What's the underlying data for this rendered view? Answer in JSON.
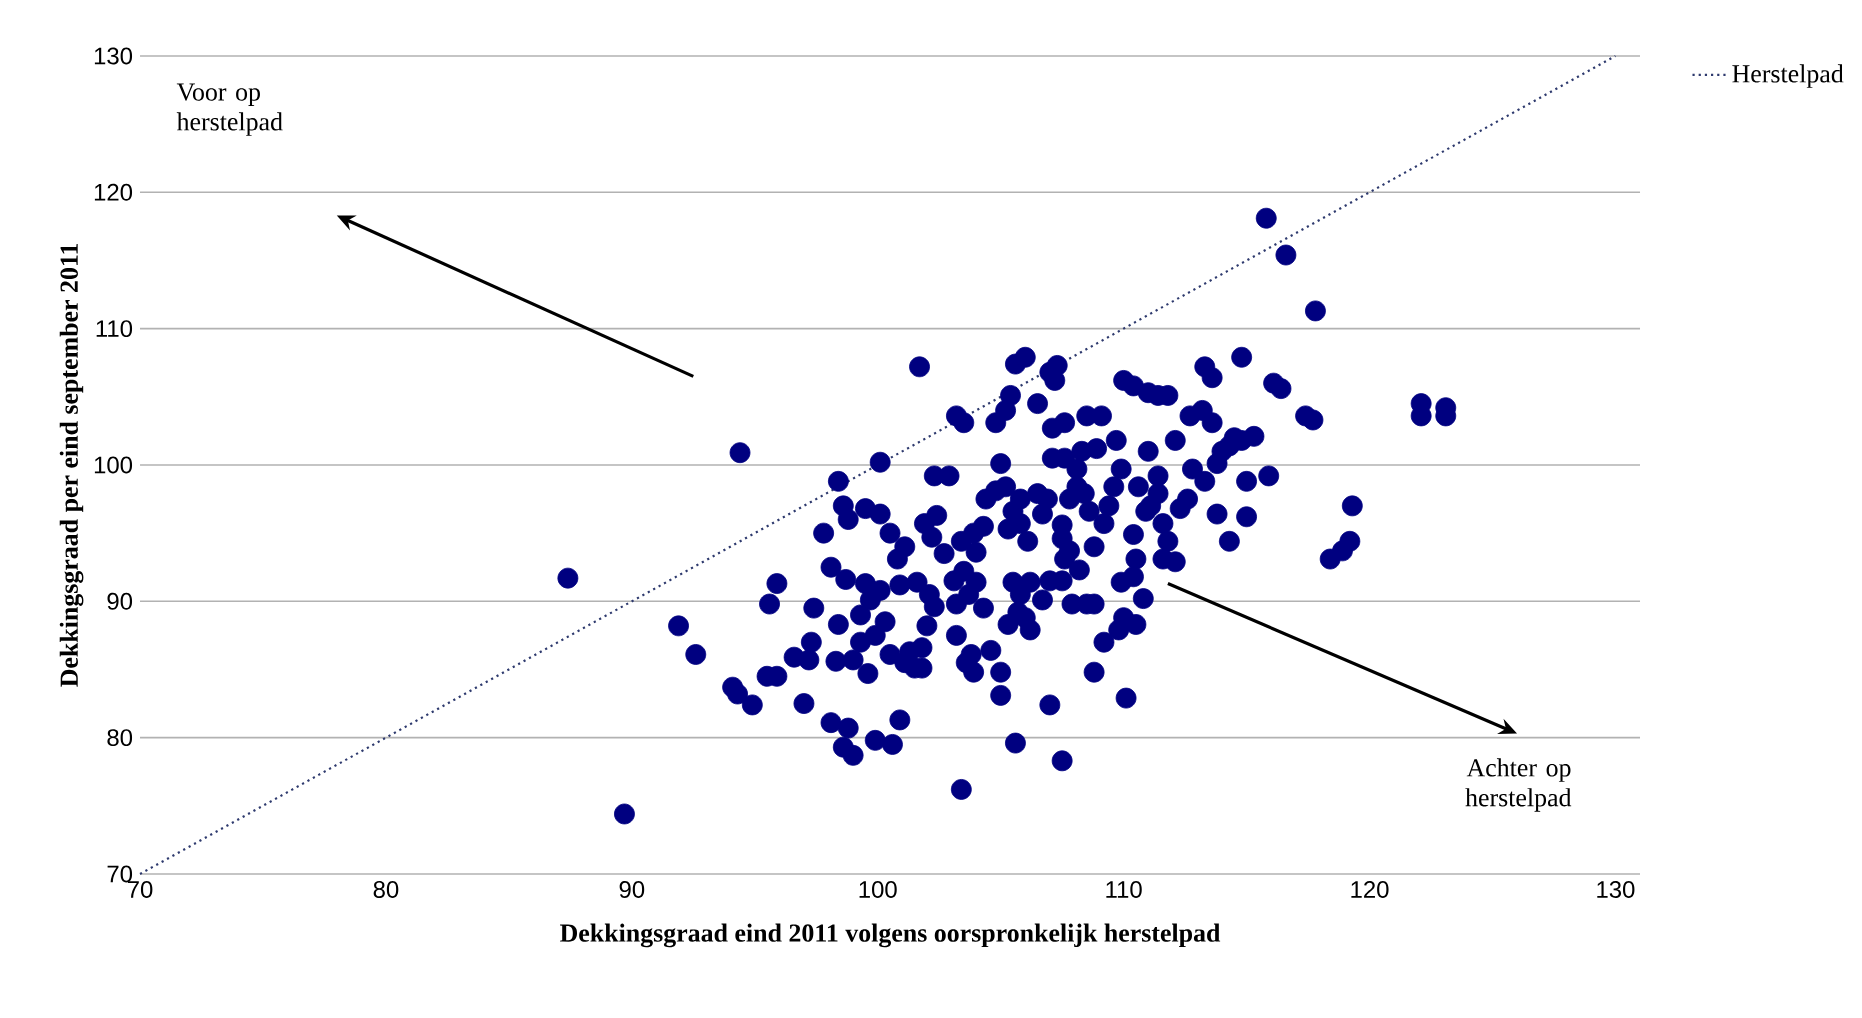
{
  "chart_data": {
    "type": "scatter",
    "xlabel": "Dekkingsgraad eind 2011 volgens oorspronkelijk herstelpad",
    "ylabel": "Dekkingsgraad per eind september 2011",
    "xlim": [
      70,
      131
    ],
    "ylim": [
      70,
      130
    ],
    "xticks": [
      70,
      80,
      90,
      100,
      110,
      120,
      130
    ],
    "yticks": [
      70,
      80,
      90,
      100,
      110,
      120,
      130
    ],
    "grid": "y",
    "legend": "top right",
    "annotations": [
      "Voor op herstelpad",
      "Achter op herstelpad"
    ],
    "series": [
      {
        "color": "#000080",
        "marker": "circle",
        "x": [
          87.4,
          89.7,
          94.4,
          91.9,
          92.6,
          94.1,
          94.3,
          94.9,
          95.5,
          95.9,
          95.9,
          95.6,
          96.6,
          97.0,
          97.3,
          97.4,
          97.2,
          97.8,
          98.1,
          98.3,
          98.4,
          98.4,
          98.6,
          99.0,
          98.8,
          98.6,
          98.8,
          98.1,
          98.7,
          99.0,
          99.6,
          99.3,
          99.5,
          100.1,
          99.9,
          100.6,
          100.9,
          100.1,
          99.5,
          100.1,
          99.7,
          99.3,
          100.3,
          99.9,
          100.5,
          100.8,
          101.1,
          100.5,
          101.1,
          101.5,
          101.8,
          101.3,
          101.8,
          101.7,
          101.6,
          102.1,
          100.9,
          102.3,
          101.9,
          102.4,
          102.2,
          102.0,
          102.3,
          102.9,
          102.7,
          103.2,
          103.5,
          103.2,
          103.8,
          103.9,
          103.6,
          103.4,
          103.1,
          103.5,
          104.0,
          103.7,
          103.2,
          104.3,
          103.4,
          103.9,
          104.3,
          104.0,
          104.4,
          104.8,
          105.2,
          104.6,
          105.0,
          105.0,
          104.8,
          105.2,
          105.4,
          105.6,
          106.0,
          105.6,
          105.0,
          105.5,
          105.8,
          106.1,
          105.3,
          105.5,
          105.8,
          106.2,
          105.7,
          105.3,
          106.2,
          106.0,
          105.8,
          106.5,
          106.5,
          107.0,
          107.3,
          107.2,
          107.0,
          107.1,
          107.1,
          106.9,
          106.7,
          106.7,
          107.0,
          107.5,
          107.5,
          107.6,
          107.6,
          107.5,
          107.8,
          107.6,
          107.5,
          107.8,
          108.1,
          108.1,
          107.9,
          108.5,
          108.8,
          108.2,
          108.3,
          108.9,
          108.5,
          109.1,
          108.8,
          108.6,
          108.4,
          108.8,
          109.2,
          109.4,
          109.2,
          109.8,
          110.0,
          110.5,
          109.6,
          109.9,
          109.7,
          110.0,
          110.4,
          110.1,
          110.4,
          110.5,
          109.9,
          110.4,
          110.8,
          110.9,
          111.1,
          111.4,
          110.6,
          111.0,
          111.0,
          111.4,
          111.8,
          111.4,
          111.6,
          111.8,
          111.6,
          112.1,
          112.1,
          112.6,
          112.3,
          112.8,
          112.7,
          113.2,
          113.3,
          113.6,
          113.6,
          113.3,
          113.8,
          114.0,
          114.3,
          114.5,
          114.8,
          115.3,
          113.8,
          114.3,
          115.0,
          115.0,
          114.8,
          115.8,
          116.6,
          117.8,
          116.1,
          116.4,
          115.9,
          117.4,
          117.7,
          118.4,
          118.9,
          119.2,
          119.3,
          122.1,
          122.1,
          123.1,
          123.1
        ],
        "values": [
          91.7,
          74.4,
          100.9,
          88.2,
          86.1,
          83.7,
          83.2,
          82.4,
          84.5,
          84.5,
          91.3,
          89.8,
          85.9,
          82.5,
          87.0,
          89.5,
          85.7,
          95.0,
          81.1,
          85.6,
          88.3,
          98.8,
          79.3,
          78.7,
          80.7,
          97.0,
          96.0,
          92.5,
          91.6,
          85.7,
          84.7,
          87.0,
          96.8,
          96.4,
          79.8,
          79.5,
          81.3,
          100.2,
          91.3,
          90.8,
          90.1,
          89.0,
          88.5,
          87.5,
          95.0,
          93.1,
          94.0,
          86.1,
          85.5,
          85.1,
          85.1,
          86.3,
          86.6,
          107.2,
          91.4,
          90.5,
          91.2,
          89.6,
          95.7,
          96.3,
          94.7,
          88.2,
          99.2,
          99.2,
          93.5,
          103.6,
          103.1,
          87.5,
          86.1,
          84.8,
          85.5,
          76.2,
          91.5,
          92.2,
          91.4,
          90.5,
          89.8,
          89.5,
          94.4,
          95.0,
          95.5,
          93.6,
          97.5,
          98.1,
          98.4,
          86.4,
          84.8,
          83.1,
          103.1,
          104.0,
          105.1,
          107.4,
          107.9,
          79.6,
          100.1,
          96.6,
          95.7,
          94.4,
          95.3,
          91.4,
          90.5,
          91.4,
          89.2,
          88.3,
          87.9,
          88.8,
          97.5,
          97.9,
          104.5,
          106.8,
          107.3,
          106.2,
          82.4,
          100.5,
          102.7,
          97.5,
          96.4,
          90.1,
          91.5,
          91.5,
          78.3,
          103.1,
          100.5,
          94.6,
          93.7,
          93.1,
          95.6,
          97.5,
          98.4,
          99.7,
          89.8,
          89.8,
          89.8,
          92.3,
          101.0,
          101.2,
          103.6,
          103.6,
          84.8,
          96.6,
          97.9,
          94.0,
          95.7,
          97.0,
          87.0,
          87.9,
          88.8,
          88.3,
          98.4,
          99.7,
          101.8,
          106.2,
          105.8,
          82.9,
          94.9,
          93.1,
          91.4,
          91.8,
          90.2,
          96.6,
          97.0,
          97.9,
          98.4,
          101.0,
          105.3,
          105.1,
          105.1,
          99.2,
          95.7,
          94.4,
          93.1,
          92.9,
          101.8,
          97.5,
          96.8,
          99.7,
          103.6,
          104.0,
          107.2,
          106.4,
          103.1,
          98.8,
          100.1,
          101.0,
          101.4,
          102.0,
          101.8,
          102.1,
          96.4,
          94.4,
          96.2,
          98.8,
          107.9,
          118.1,
          115.4,
          111.3,
          106.0,
          105.6,
          99.2,
          103.6,
          103.3,
          93.1,
          93.7,
          94.4,
          97.0,
          104.5,
          103.6,
          104.2,
          103.6
        ]
      },
      {
        "name": "Herstelpad",
        "type": "line",
        "marker": "none",
        "line_style": "dotted",
        "color": "#2e3a6e",
        "x": [
          70,
          130
        ],
        "values": [
          70,
          130
        ]
      }
    ]
  }
}
